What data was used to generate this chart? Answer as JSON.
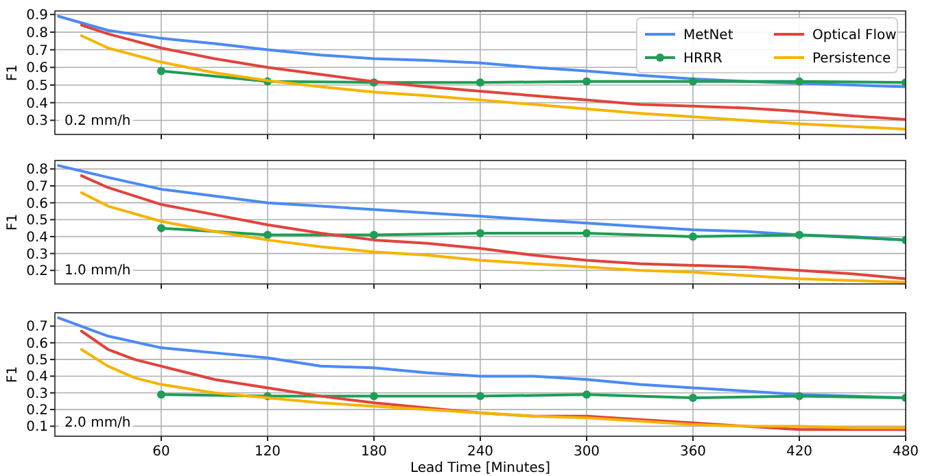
{
  "chart_data": [
    {
      "type": "line",
      "ylabel": "F1",
      "xlim": [
        0,
        480
      ],
      "xticks": [
        60,
        120,
        180,
        240,
        300,
        360,
        420,
        480
      ],
      "ylim": [
        0.22,
        0.92
      ],
      "yticks": [
        0.3,
        0.4,
        0.5,
        0.6,
        0.7,
        0.8,
        0.9
      ],
      "grid": true,
      "legend": "top right",
      "tick_labels": "y",
      "annotations": [
        "0.2 mm/h"
      ],
      "series": [
        {
          "name": "MetNet",
          "color": "#4a8af4",
          "marker": "none",
          "x": [
            2,
            30,
            60,
            90,
            120,
            150,
            180,
            210,
            240,
            270,
            300,
            330,
            360,
            390,
            420,
            450,
            480
          ],
          "values": [
            0.89,
            0.81,
            0.765,
            0.735,
            0.7,
            0.67,
            0.65,
            0.64,
            0.625,
            0.6,
            0.58,
            0.555,
            0.535,
            0.52,
            0.51,
            0.5,
            0.49
          ]
        },
        {
          "name": "HRRR",
          "color": "#1e9e57",
          "marker": "circle",
          "x": [
            60,
            120,
            180,
            240,
            300,
            360,
            420,
            480
          ],
          "values": [
            0.58,
            0.52,
            0.515,
            0.515,
            0.52,
            0.52,
            0.52,
            0.515
          ]
        },
        {
          "name": "Optical Flow",
          "color": "#e0443c",
          "marker": "none",
          "x": [
            15,
            30,
            60,
            90,
            120,
            150,
            180,
            210,
            240,
            270,
            300,
            330,
            360,
            390,
            420,
            450,
            480
          ],
          "values": [
            0.84,
            0.79,
            0.71,
            0.65,
            0.6,
            0.56,
            0.52,
            0.49,
            0.465,
            0.44,
            0.415,
            0.39,
            0.38,
            0.37,
            0.35,
            0.325,
            0.305
          ]
        },
        {
          "name": "Persistence",
          "color": "#f5b400",
          "marker": "none",
          "x": [
            15,
            30,
            60,
            90,
            120,
            150,
            180,
            210,
            240,
            270,
            300,
            330,
            360,
            390,
            420,
            450,
            480
          ],
          "values": [
            0.78,
            0.71,
            0.63,
            0.57,
            0.525,
            0.49,
            0.46,
            0.44,
            0.415,
            0.39,
            0.365,
            0.34,
            0.32,
            0.3,
            0.28,
            0.265,
            0.25
          ]
        }
      ]
    },
    {
      "type": "line",
      "ylabel": "F1",
      "xlim": [
        0,
        480
      ],
      "xticks": [
        60,
        120,
        180,
        240,
        300,
        360,
        420,
        480
      ],
      "ylim": [
        0.12,
        0.85
      ],
      "yticks": [
        0.2,
        0.3,
        0.4,
        0.5,
        0.6,
        0.7,
        0.8
      ],
      "grid": true,
      "tick_labels": "y",
      "annotations": [
        "1.0 mm/h"
      ],
      "series": [
        {
          "color": "#4a8af4",
          "marker": "none",
          "x": [
            2,
            30,
            60,
            90,
            120,
            150,
            180,
            210,
            240,
            270,
            300,
            330,
            360,
            390,
            420,
            450,
            480
          ],
          "values": [
            0.82,
            0.75,
            0.68,
            0.64,
            0.6,
            0.58,
            0.56,
            0.54,
            0.52,
            0.5,
            0.48,
            0.46,
            0.44,
            0.43,
            0.41,
            0.4,
            0.38
          ]
        },
        {
          "color": "#1e9e57",
          "marker": "circle",
          "x": [
            60,
            120,
            180,
            240,
            300,
            360,
            420,
            480
          ],
          "values": [
            0.45,
            0.41,
            0.41,
            0.42,
            0.42,
            0.4,
            0.41,
            0.38
          ]
        },
        {
          "color": "#e0443c",
          "marker": "none",
          "x": [
            15,
            30,
            60,
            90,
            120,
            150,
            180,
            210,
            240,
            270,
            300,
            330,
            360,
            390,
            420,
            450,
            480
          ],
          "values": [
            0.76,
            0.69,
            0.59,
            0.53,
            0.47,
            0.42,
            0.38,
            0.36,
            0.33,
            0.29,
            0.26,
            0.24,
            0.23,
            0.22,
            0.2,
            0.18,
            0.15
          ]
        },
        {
          "color": "#f5b400",
          "marker": "none",
          "x": [
            15,
            30,
            60,
            90,
            120,
            150,
            180,
            210,
            240,
            270,
            300,
            330,
            360,
            390,
            420,
            450,
            480
          ],
          "values": [
            0.66,
            0.58,
            0.49,
            0.43,
            0.38,
            0.34,
            0.31,
            0.29,
            0.26,
            0.24,
            0.22,
            0.2,
            0.19,
            0.17,
            0.15,
            0.14,
            0.13
          ]
        }
      ]
    },
    {
      "type": "line",
      "xlabel": "Lead Time [Minutes]",
      "ylabel": "F1",
      "xlim": [
        0,
        480
      ],
      "xticks": [
        60,
        120,
        180,
        240,
        300,
        360,
        420,
        480
      ],
      "ylim": [
        0.04,
        0.78
      ],
      "yticks": [
        0.1,
        0.2,
        0.3,
        0.4,
        0.5,
        0.6,
        0.7
      ],
      "grid": true,
      "annotations": [
        "2.0 mm/h"
      ],
      "series": [
        {
          "color": "#4a8af4",
          "marker": "none",
          "x": [
            2,
            30,
            60,
            90,
            120,
            150,
            180,
            210,
            240,
            270,
            300,
            330,
            360,
            390,
            420,
            450,
            480
          ],
          "values": [
            0.75,
            0.64,
            0.57,
            0.54,
            0.51,
            0.46,
            0.45,
            0.42,
            0.4,
            0.4,
            0.38,
            0.35,
            0.33,
            0.31,
            0.29,
            0.28,
            0.27
          ]
        },
        {
          "color": "#1e9e57",
          "marker": "circle",
          "x": [
            60,
            120,
            180,
            240,
            300,
            360,
            420,
            480
          ],
          "values": [
            0.29,
            0.28,
            0.28,
            0.28,
            0.29,
            0.27,
            0.28,
            0.27
          ]
        },
        {
          "color": "#e0443c",
          "marker": "none",
          "x": [
            15,
            30,
            45,
            60,
            90,
            120,
            150,
            180,
            210,
            240,
            270,
            300,
            330,
            360,
            390,
            420,
            450,
            480
          ],
          "values": [
            0.67,
            0.56,
            0.5,
            0.46,
            0.38,
            0.33,
            0.28,
            0.24,
            0.21,
            0.18,
            0.16,
            0.16,
            0.14,
            0.12,
            0.1,
            0.08,
            0.08,
            0.08
          ]
        },
        {
          "color": "#f5b400",
          "marker": "none",
          "x": [
            15,
            30,
            45,
            60,
            90,
            120,
            150,
            180,
            210,
            240,
            270,
            300,
            330,
            360,
            390,
            420,
            450,
            480
          ],
          "values": [
            0.56,
            0.46,
            0.39,
            0.35,
            0.3,
            0.27,
            0.24,
            0.22,
            0.2,
            0.18,
            0.16,
            0.15,
            0.13,
            0.11,
            0.1,
            0.1,
            0.09,
            0.09
          ]
        }
      ]
    }
  ]
}
